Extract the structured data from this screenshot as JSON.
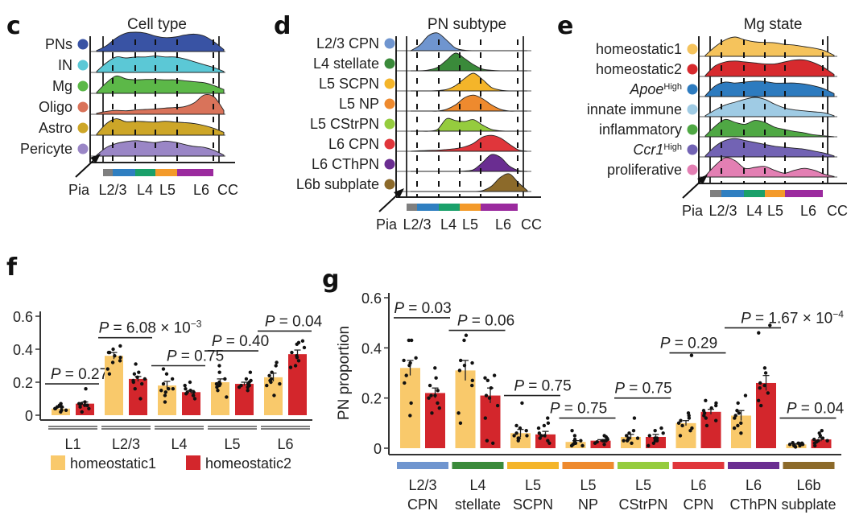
{
  "chart_data": [
    {
      "panel": "c",
      "type": "area",
      "title": "Cell type",
      "xlabel_ticks": [
        "Pia",
        "L2/3",
        "L4",
        "L5",
        "L6",
        "CC"
      ],
      "layer_bar_colors": [
        "#7f7f7f",
        "#2f7fc1",
        "#1aa06a",
        "#f39a2a",
        "#9b2a9e"
      ],
      "series": [
        {
          "name": "PNs",
          "color": "#3953a4",
          "density": [
            0.05,
            0.3,
            0.7,
            0.95,
            1.0,
            0.95,
            0.8,
            0.72,
            0.75,
            0.85,
            0.9,
            0.8,
            0.5,
            0.1
          ]
        },
        {
          "name": "IN",
          "color": "#5bc8d6",
          "density": [
            0.05,
            0.5,
            0.8,
            0.75,
            0.8,
            0.8,
            0.85,
            0.8,
            0.8,
            0.7,
            0.55,
            0.4,
            0.25,
            0.05
          ]
        },
        {
          "name": "Mg",
          "color": "#5cb848",
          "density": [
            0.05,
            0.55,
            0.9,
            0.75,
            0.7,
            0.72,
            0.72,
            0.7,
            0.7,
            0.65,
            0.6,
            0.55,
            0.4,
            0.2
          ]
        },
        {
          "name": "Oligo",
          "color": "#d9735a",
          "density": [
            0.05,
            0.15,
            0.2,
            0.18,
            0.22,
            0.25,
            0.28,
            0.32,
            0.35,
            0.4,
            0.6,
            1.0,
            0.9,
            0.2
          ]
        },
        {
          "name": "Astro",
          "color": "#cda628",
          "density": [
            0.05,
            0.6,
            0.85,
            0.7,
            0.72,
            0.7,
            0.68,
            0.72,
            0.68,
            0.65,
            0.6,
            0.5,
            0.35,
            0.15
          ]
        },
        {
          "name": "Pericyte",
          "color": "#9a86c6",
          "density": [
            0.05,
            0.45,
            0.65,
            0.75,
            0.8,
            0.75,
            0.7,
            0.78,
            0.72,
            0.6,
            0.5,
            0.45,
            0.3,
            0.05
          ]
        }
      ]
    },
    {
      "panel": "d",
      "type": "area",
      "title": "PN subtype",
      "xlabel_ticks": [
        "Pia",
        "L2/3",
        "L4",
        "L5",
        "L6",
        "CC"
      ],
      "layer_bar_colors": [
        "#7f7f7f",
        "#2f7fc1",
        "#1aa06a",
        "#f39a2a",
        "#9b2a9e"
      ],
      "series": [
        {
          "name": "L2/3 CPN",
          "color": "#6f95cf",
          "density": [
            0,
            0.3,
            0.85,
            1.0,
            0.6,
            0.15,
            0.03,
            0,
            0,
            0,
            0,
            0,
            0,
            0
          ]
        },
        {
          "name": "L4 stellate",
          "color": "#3a8a3a",
          "density": [
            0,
            0,
            0.05,
            0.2,
            0.6,
            1.0,
            0.7,
            0.35,
            0.1,
            0.03,
            0,
            0,
            0,
            0
          ]
        },
        {
          "name": "L5 SCPN",
          "color": "#f4b52a",
          "density": [
            0,
            0,
            0,
            0.02,
            0.08,
            0.3,
            0.7,
            1.0,
            0.65,
            0.2,
            0.05,
            0,
            0,
            0
          ]
        },
        {
          "name": "L5 NP",
          "color": "#ee8a2e",
          "density": [
            0,
            0,
            0,
            0,
            0.1,
            0.35,
            0.75,
            0.9,
            0.7,
            0.35,
            0.1,
            0,
            0,
            0
          ]
        },
        {
          "name": "L5 CStrPN",
          "color": "#95cc3e",
          "density": [
            0,
            0,
            0,
            0.1,
            0.7,
            0.6,
            0.55,
            0.65,
            0.35,
            0.1,
            0.02,
            0,
            0,
            0
          ]
        },
        {
          "name": "L6 CPN",
          "color": "#e0363b",
          "density": [
            0,
            0.03,
            0.05,
            0.06,
            0.1,
            0.15,
            0.25,
            0.45,
            0.8,
            0.9,
            0.75,
            0.4,
            0.08,
            0
          ]
        },
        {
          "name": "L6 CThPN",
          "color": "#6a2d91",
          "density": [
            0,
            0,
            0,
            0,
            0,
            0,
            0.02,
            0.1,
            0.5,
            0.95,
            0.8,
            0.3,
            0.05,
            0
          ]
        },
        {
          "name": "L6b subplate",
          "color": "#8c6a2a",
          "density": [
            0,
            0,
            0,
            0,
            0,
            0,
            0,
            0,
            0.05,
            0.3,
            0.8,
            1.0,
            0.5,
            0.05
          ]
        }
      ]
    },
    {
      "panel": "e",
      "type": "area",
      "title": "Mg state",
      "xlabel_ticks": [
        "Pia",
        "L2/3",
        "L4",
        "L5",
        "L6",
        "CC"
      ],
      "layer_bar_colors": [
        "#7f7f7f",
        "#2f7fc1",
        "#1aa06a",
        "#f39a2a",
        "#9b2a9e"
      ],
      "series": [
        {
          "name": "homeostatic1",
          "superscript": "",
          "italic": false,
          "color": "#f5c35c",
          "density": [
            0.05,
            0.5,
            0.85,
            1.0,
            0.85,
            0.75,
            0.72,
            0.7,
            0.62,
            0.58,
            0.5,
            0.42,
            0.3,
            0.05
          ]
        },
        {
          "name": "homeostatic2",
          "superscript": "",
          "italic": false,
          "color": "#d72a2e",
          "density": [
            0.05,
            0.55,
            0.75,
            0.8,
            0.75,
            0.7,
            0.65,
            0.65,
            0.75,
            0.85,
            0.85,
            0.7,
            0.45,
            0.1
          ]
        },
        {
          "name": "Apoe",
          "superscript": "High",
          "italic": true,
          "color": "#2d7bbf",
          "density": [
            0.05,
            0.55,
            0.75,
            0.7,
            0.75,
            0.8,
            0.78,
            0.7,
            0.7,
            0.7,
            0.65,
            0.55,
            0.4,
            0.15
          ]
        },
        {
          "name": "innate immune",
          "superscript": "",
          "italic": false,
          "color": "#9fcbe4",
          "density": [
            0.05,
            0.35,
            0.6,
            0.75,
            0.9,
            1.0,
            0.9,
            0.65,
            0.45,
            0.35,
            0.3,
            0.25,
            0.2,
            0.05
          ]
        },
        {
          "name": "inflammatory",
          "superscript": "",
          "italic": false,
          "color": "#4fa844",
          "density": [
            0.05,
            0.55,
            0.9,
            0.75,
            0.65,
            0.85,
            0.75,
            0.5,
            0.38,
            0.28,
            0.2,
            0.1,
            0.05,
            0
          ]
        },
        {
          "name": "Ccr1",
          "superscript": "High",
          "italic": true,
          "color": "#7263b4",
          "density": [
            0.05,
            0.55,
            0.85,
            0.95,
            0.85,
            0.75,
            0.65,
            0.55,
            0.5,
            0.45,
            0.4,
            0.3,
            0.2,
            0.05
          ]
        },
        {
          "name": "proliferative",
          "superscript": "",
          "italic": false,
          "color": "#e37fb3",
          "density": [
            0.05,
            0.6,
            1.0,
            0.85,
            0.45,
            0.5,
            0.55,
            0.35,
            0.2,
            0.35,
            0.45,
            0.35,
            0.15,
            0.03
          ]
        }
      ]
    },
    {
      "panel": "f",
      "type": "bar",
      "title": "",
      "xlabel": "",
      "ylabel": "",
      "ylim": [
        0,
        0.6
      ],
      "yticks": [
        "0",
        "0.2",
        "0.4",
        "0.6"
      ],
      "ytick_values": [
        0,
        0.2,
        0.4,
        0.6
      ],
      "categories": [
        "L1",
        "L2/3",
        "L4",
        "L5",
        "L6"
      ],
      "series": [
        {
          "name": "homeostatic1",
          "color": "#f9c96b",
          "values": [
            0.04,
            0.36,
            0.18,
            0.2,
            0.23
          ],
          "sem": [
            0.008,
            0.02,
            0.025,
            0.02,
            0.025
          ],
          "points": [
            [
              0.02,
              0.03,
              0.04,
              0.05,
              0.06,
              0.07,
              0.04,
              0.03,
              0.05,
              0.06
            ],
            [
              0.25,
              0.28,
              0.33,
              0.35,
              0.38,
              0.4,
              0.42,
              0.38,
              0.32,
              0.36
            ],
            [
              0.08,
              0.12,
              0.15,
              0.16,
              0.19,
              0.22,
              0.25,
              0.28,
              0.16,
              0.14
            ],
            [
              0.11,
              0.15,
              0.18,
              0.19,
              0.2,
              0.22,
              0.26,
              0.3,
              0.17,
              0.19
            ],
            [
              0.12,
              0.18,
              0.2,
              0.22,
              0.24,
              0.26,
              0.3,
              0.32,
              0.21,
              0.19
            ]
          ]
        },
        {
          "name": "homeostatic2",
          "color": "#d3262c",
          "values": [
            0.07,
            0.22,
            0.14,
            0.19,
            0.37
          ],
          "sem": [
            0.01,
            0.015,
            0.01,
            0.01,
            0.025
          ],
          "points": [
            [
              0.02,
              0.04,
              0.06,
              0.07,
              0.08,
              0.07,
              0.06,
              0.05,
              0.16,
              0.06
            ],
            [
              0.1,
              0.16,
              0.2,
              0.22,
              0.23,
              0.25,
              0.26,
              0.31,
              0.21,
              0.19
            ],
            [
              0.1,
              0.12,
              0.13,
              0.14,
              0.15,
              0.16,
              0.18,
              0.2,
              0.14,
              0.12
            ],
            [
              0.15,
              0.17,
              0.18,
              0.19,
              0.2,
              0.21,
              0.26,
              0.18,
              0.17,
              0.22
            ],
            [
              0.29,
              0.3,
              0.33,
              0.36,
              0.38,
              0.41,
              0.43,
              0.45,
              0.44,
              0.35
            ]
          ]
        }
      ],
      "pvalues": [
        {
          "text": "P = 0.27",
          "mantissa": "",
          "exponent": "",
          "line_y": 0.19
        },
        {
          "text": "P = 6.08 × 10",
          "exponent": "−3",
          "line_y": 0.47
        },
        {
          "text": "P = 0.75",
          "exponent": "",
          "line_y": 0.3
        },
        {
          "text": "P = 0.40",
          "exponent": "",
          "line_y": 0.39
        },
        {
          "text": "P = 0.04",
          "exponent": "",
          "line_y": 0.51
        }
      ],
      "legend": {
        "position": "bottom",
        "entries": [
          "homeostatic1",
          "homeostatic2"
        ]
      }
    },
    {
      "panel": "g",
      "type": "bar",
      "title": "",
      "xlabel": "",
      "ylabel": "PN proportion",
      "ylim": [
        0,
        0.6
      ],
      "yticks": [
        "0",
        "0.2",
        "0.4",
        "0.6"
      ],
      "ytick_values": [
        0,
        0.2,
        0.4,
        0.6
      ],
      "categories": [
        {
          "line1": "L2/3",
          "line2": "CPN",
          "color": "#6f95cf"
        },
        {
          "line1": "L4",
          "line2": "stellate",
          "color": "#3a8a3a"
        },
        {
          "line1": "L5",
          "line2": "SCPN",
          "color": "#f4b52a"
        },
        {
          "line1": "L5",
          "line2": "NP",
          "color": "#ee8a2e"
        },
        {
          "line1": "L5",
          "line2": "CStrPN",
          "color": "#95cc3e"
        },
        {
          "line1": "L6",
          "line2": "CPN",
          "color": "#e0363b"
        },
        {
          "line1": "L6",
          "line2": "CThPN",
          "color": "#6a2d91"
        },
        {
          "line1": "L6b",
          "line2": "subplate",
          "color": "#8c6a2a"
        }
      ],
      "series": [
        {
          "name": "homeostatic1",
          "color": "#f9c96b",
          "values": [
            0.32,
            0.31,
            0.06,
            0.025,
            0.045,
            0.1,
            0.13,
            0.015
          ],
          "sem": [
            0.03,
            0.04,
            0.015,
            0.005,
            0.01,
            0.01,
            0.02,
            0.003
          ],
          "points": [
            [
              0.13,
              0.18,
              0.26,
              0.29,
              0.33,
              0.34,
              0.35,
              0.36,
              0.43,
              0.43
            ],
            [
              0.1,
              0.14,
              0.25,
              0.27,
              0.31,
              0.33,
              0.34,
              0.35,
              0.43,
              0.45
            ],
            [
              0.03,
              0.04,
              0.05,
              0.05,
              0.06,
              0.07,
              0.08,
              0.09,
              0.18,
              0.04
            ],
            [
              0.01,
              0.015,
              0.02,
              0.02,
              0.025,
              0.03,
              0.035,
              0.05,
              0.07,
              0.01
            ],
            [
              0.02,
              0.03,
              0.035,
              0.04,
              0.05,
              0.06,
              0.07,
              0.12,
              0.03,
              0.04
            ],
            [
              0.05,
              0.07,
              0.08,
              0.09,
              0.1,
              0.11,
              0.12,
              0.13,
              0.14,
              0.37
            ],
            [
              0.06,
              0.08,
              0.09,
              0.1,
              0.12,
              0.14,
              0.15,
              0.18,
              0.21,
              0.13
            ],
            [
              0.005,
              0.01,
              0.012,
              0.015,
              0.018,
              0.02,
              0.022,
              0.01,
              0.015,
              0.02
            ]
          ]
        },
        {
          "name": "homeostatic2",
          "color": "#d3262c",
          "values": [
            0.22,
            0.21,
            0.055,
            0.03,
            0.045,
            0.145,
            0.26,
            0.035
          ],
          "sem": [
            0.02,
            0.03,
            0.012,
            0.004,
            0.01,
            0.01,
            0.03,
            0.007
          ],
          "points": [
            [
              0.14,
              0.16,
              0.18,
              0.2,
              0.21,
              0.21,
              0.23,
              0.25,
              0.28,
              0.32
            ],
            [
              0.02,
              0.03,
              0.12,
              0.17,
              0.2,
              0.21,
              0.24,
              0.27,
              0.28,
              0.29
            ],
            [
              0.02,
              0.03,
              0.04,
              0.05,
              0.05,
              0.06,
              0.08,
              0.09,
              0.1,
              0.12
            ],
            [
              0.015,
              0.02,
              0.025,
              0.03,
              0.03,
              0.035,
              0.04,
              0.045,
              0.05,
              0.03
            ],
            [
              0.01,
              0.02,
              0.03,
              0.04,
              0.05,
              0.06,
              0.07,
              0.08,
              0.04,
              0.03
            ],
            [
              0.09,
              0.11,
              0.12,
              0.13,
              0.14,
              0.15,
              0.16,
              0.17,
              0.18,
              0.19
            ],
            [
              0.17,
              0.19,
              0.22,
              0.24,
              0.25,
              0.26,
              0.3,
              0.32,
              0.46,
              0.49
            ],
            [
              0.01,
              0.02,
              0.025,
              0.03,
              0.035,
              0.04,
              0.05,
              0.06,
              0.07,
              0.03
            ]
          ]
        }
      ],
      "pvalues": [
        {
          "text": "P = 0.03",
          "exponent": "",
          "line_y": 0.52
        },
        {
          "text": "P = 0.06",
          "exponent": "",
          "line_y": 0.47
        },
        {
          "text": "P = 0.75",
          "exponent": "",
          "line_y": 0.21
        },
        {
          "text": "P = 0.75",
          "exponent": "",
          "line_y": 0.12
        },
        {
          "text": "P = 0.75",
          "exponent": "",
          "line_y": 0.2
        },
        {
          "text": "P = 0.29",
          "exponent": "",
          "line_y": 0.38
        },
        {
          "text": "P = 1.67 × 10",
          "exponent": "−4",
          "line_y": 0.48
        },
        {
          "text": "P = 0.04",
          "exponent": "",
          "line_y": 0.12
        }
      ]
    }
  ],
  "panels": {
    "c": {
      "letter": "c"
    },
    "d": {
      "letter": "d"
    },
    "e": {
      "letter": "e"
    },
    "f": {
      "letter": "f"
    },
    "g": {
      "letter": "g"
    }
  }
}
